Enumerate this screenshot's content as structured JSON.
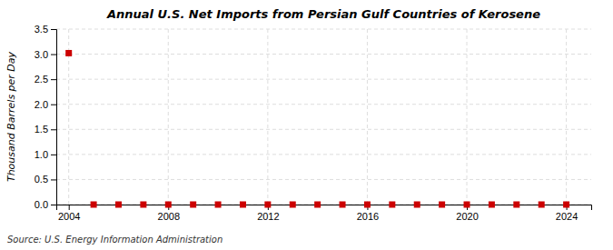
{
  "chart_data": {
    "type": "scatter",
    "title": "Annual U.S. Net Imports from Persian Gulf Countries of Kerosene",
    "ylabel": "Thousand Barrels per Day",
    "annotations": [
      "Source: U.S. Energy Information Administration"
    ],
    "x": [
      2004,
      2005,
      2006,
      2007,
      2008,
      2009,
      2010,
      2011,
      2012,
      2013,
      2014,
      2015,
      2016,
      2017,
      2018,
      2019,
      2020,
      2021,
      2022,
      2023,
      2024
    ],
    "values": [
      3.02,
      0.0,
      0.0,
      0.0,
      0.0,
      0.0,
      0.0,
      0.0,
      0.0,
      0.0,
      0.0,
      0.0,
      0.0,
      0.0,
      0.0,
      0.0,
      0.0,
      0.0,
      0.0,
      0.0,
      0.0
    ],
    "color": "#cc0000",
    "marker": "square",
    "xlim": [
      2003.5,
      2025
    ],
    "ylim": [
      0,
      3.5
    ],
    "xticks": [
      2004,
      2008,
      2012,
      2016,
      2020,
      2024
    ],
    "yticks": [
      {
        "value": 0.0,
        "label": "0.0"
      },
      0.5,
      {
        "value": 1.0,
        "label": "1.0"
      },
      1.5,
      {
        "value": 2.0,
        "label": "2.0"
      },
      2.5,
      {
        "value": 3.0,
        "label": "3.0"
      },
      3.5
    ],
    "grid": true
  }
}
